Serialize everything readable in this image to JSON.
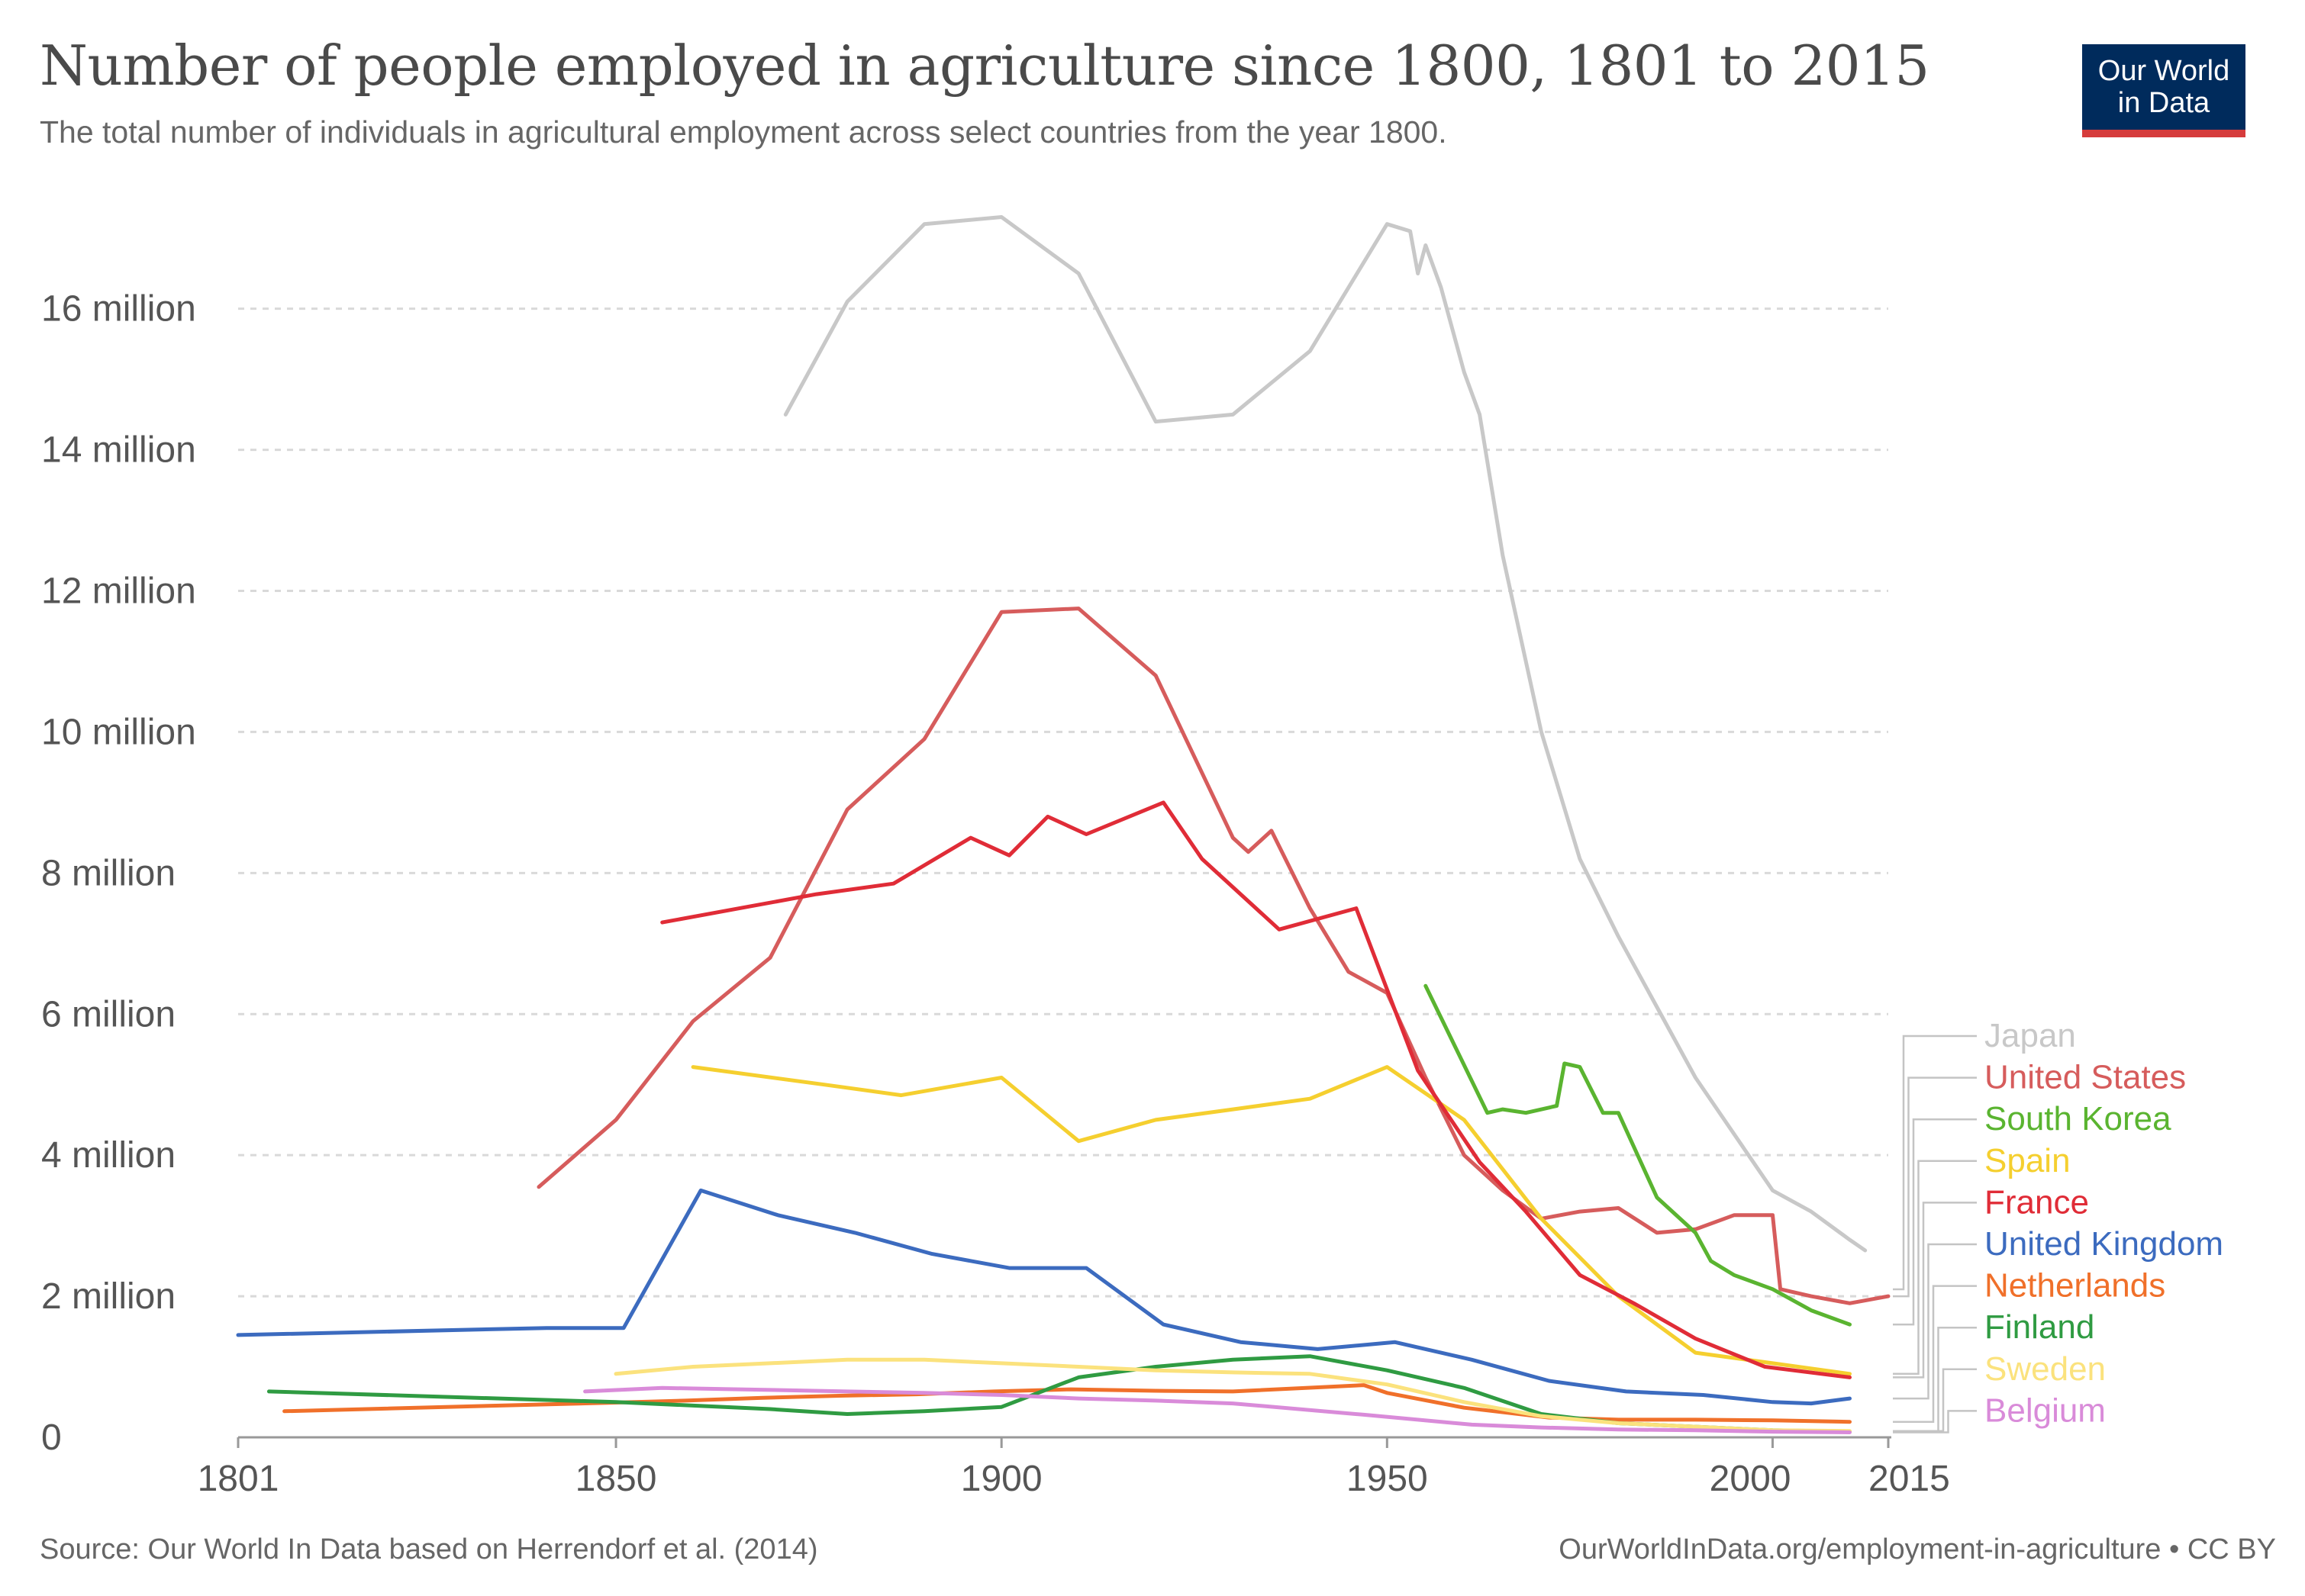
{
  "header": {
    "title": "Number of people employed in agriculture since 1800, 1801 to 2015",
    "subtitle": "The total number of individuals in agricultural employment across select countries from the year 1800.",
    "logo_line1": "Our World",
    "logo_line2": "in Data"
  },
  "footer": {
    "source": "Source: Our World In Data based on Herrendorf et al. (2014)",
    "url": "OurWorldInData.org/employment-in-agriculture • CC BY"
  },
  "chart_data": {
    "type": "line",
    "title": "Number of people employed in agriculture since 1800, 1801 to 2015",
    "xlabel": "",
    "ylabel": "",
    "xlim": [
      1801,
      2015
    ],
    "ylim": [
      0,
      17500000
    ],
    "x_ticks": [
      1801,
      1850,
      1900,
      1950,
      2000,
      2015
    ],
    "y_ticks": [
      {
        "value": 0,
        "label": "0"
      },
      {
        "value": 2000000,
        "label": "2 million"
      },
      {
        "value": 4000000,
        "label": "4 million"
      },
      {
        "value": 6000000,
        "label": "6 million"
      },
      {
        "value": 8000000,
        "label": "8 million"
      },
      {
        "value": 10000000,
        "label": "10 million"
      },
      {
        "value": 12000000,
        "label": "12 million"
      },
      {
        "value": 14000000,
        "label": "14 million"
      },
      {
        "value": 16000000,
        "label": "16 million"
      }
    ],
    "grid": true,
    "legend_position": "right",
    "series": [
      {
        "name": "Japan",
        "color": "#c8c8c8",
        "x": [
          1872,
          1880,
          1890,
          1900,
          1910,
          1920,
          1930,
          1940,
          1950,
          1953,
          1954,
          1955,
          1957,
          1960,
          1962,
          1965,
          1970,
          1975,
          1980,
          1985,
          1990,
          1995,
          2000,
          2005,
          2010,
          2012
        ],
        "y": [
          14500000,
          16100000,
          17200000,
          17300000,
          16500000,
          14400000,
          14500000,
          15400000,
          17200000,
          17100000,
          16500000,
          16900000,
          16300000,
          15100000,
          14500000,
          12500000,
          10000000,
          8200000,
          7100000,
          6100000,
          5100000,
          4300000,
          3500000,
          3200000,
          2800000,
          2650000
        ]
      },
      {
        "name": "United States",
        "color": "#d65c5c",
        "x": [
          1840,
          1850,
          1860,
          1870,
          1880,
          1890,
          1900,
          1910,
          1920,
          1930,
          1932,
          1935,
          1940,
          1945,
          1950,
          1955,
          1960,
          1965,
          1970,
          1975,
          1980,
          1985,
          1990,
          1995,
          2000,
          2001,
          2005,
          2010,
          2015
        ],
        "y": [
          3550000,
          4500000,
          5900000,
          6800000,
          8900000,
          9900000,
          11700000,
          11750000,
          10800000,
          8500000,
          8300000,
          8600000,
          7500000,
          6600000,
          6300000,
          5100000,
          4000000,
          3500000,
          3100000,
          3200000,
          3250000,
          2900000,
          2950000,
          3150000,
          3150000,
          2100000,
          2000000,
          1900000,
          2000000
        ]
      },
      {
        "name": "South Korea",
        "color": "#5ab430",
        "x": [
          1955,
          1963,
          1965,
          1968,
          1972,
          1973,
          1975,
          1978,
          1980,
          1985,
          1990,
          1992,
          1995,
          2000,
          2005,
          2010
        ],
        "y": [
          6400000,
          4600000,
          4650000,
          4600000,
          4700000,
          5300000,
          5250000,
          4600000,
          4600000,
          3400000,
          2900000,
          2500000,
          2300000,
          2100000,
          1800000,
          1600000
        ]
      },
      {
        "name": "Spain",
        "color": "#f5cf2f",
        "x": [
          1860,
          1877,
          1887,
          1900,
          1910,
          1920,
          1930,
          1940,
          1950,
          1960,
          1970,
          1980,
          1990,
          2000,
          2010
        ],
        "y": [
          5250000,
          5000000,
          4850000,
          5100000,
          4200000,
          4500000,
          4650000,
          4800000,
          5250000,
          4500000,
          3100000,
          2000000,
          1200000,
          1050000,
          900000
        ]
      },
      {
        "name": "France",
        "color": "#e02c37",
        "x": [
          1856,
          1866,
          1876,
          1886,
          1896,
          1901,
          1906,
          1911,
          1921,
          1926,
          1936,
          1946,
          1954,
          1962,
          1968,
          1975,
          1982,
          1990,
          1999,
          2010
        ],
        "y": [
          7300000,
          7500000,
          7700000,
          7850000,
          8500000,
          8250000,
          8800000,
          8550000,
          9000000,
          8200000,
          7200000,
          7500000,
          5200000,
          3900000,
          3200000,
          2300000,
          1900000,
          1400000,
          1000000,
          850000
        ]
      },
      {
        "name": "United Kingdom",
        "color": "#3c6bbf",
        "x": [
          1801,
          1841,
          1851,
          1861,
          1871,
          1881,
          1891,
          1901,
          1911,
          1921,
          1931,
          1941,
          1951,
          1961,
          1971,
          1981,
          1991,
          2000,
          2005,
          2010
        ],
        "y": [
          1450000,
          1550000,
          1550000,
          3500000,
          3150000,
          2900000,
          2600000,
          2400000,
          2400000,
          1600000,
          1350000,
          1250000,
          1350000,
          1100000,
          800000,
          650000,
          600000,
          500000,
          480000,
          550000
        ]
      },
      {
        "name": "Netherlands",
        "color": "#f0702a",
        "x": [
          1807,
          1849,
          1859,
          1869,
          1879,
          1889,
          1899,
          1909,
          1920,
          1930,
          1947,
          1950,
          1960,
          1971,
          1980,
          1990,
          2000,
          2010
        ],
        "y": [
          370000,
          490000,
          520000,
          560000,
          590000,
          610000,
          650000,
          680000,
          660000,
          650000,
          740000,
          630000,
          420000,
          280000,
          250000,
          250000,
          240000,
          220000
        ]
      },
      {
        "name": "Finland",
        "color": "#2f9b42",
        "x": [
          1805,
          1850,
          1860,
          1870,
          1880,
          1890,
          1900,
          1910,
          1920,
          1930,
          1940,
          1950,
          1960,
          1970,
          1980,
          1990,
          2000,
          2010
        ],
        "y": [
          650000,
          500000,
          450000,
          400000,
          330000,
          370000,
          430000,
          850000,
          1000000,
          1100000,
          1150000,
          950000,
          700000,
          330000,
          200000,
          150000,
          100000,
          80000
        ]
      },
      {
        "name": "Sweden",
        "color": "#fbe27d",
        "x": [
          1850,
          1860,
          1870,
          1880,
          1890,
          1900,
          1910,
          1920,
          1930,
          1940,
          1950,
          1960,
          1970,
          1980,
          1990,
          2000,
          2010
        ],
        "y": [
          900000,
          1000000,
          1050000,
          1100000,
          1100000,
          1050000,
          1000000,
          950000,
          920000,
          900000,
          750000,
          500000,
          300000,
          200000,
          150000,
          100000,
          90000
        ]
      },
      {
        "name": "Belgium",
        "color": "#d98bd9",
        "x": [
          1846,
          1856,
          1866,
          1880,
          1890,
          1900,
          1910,
          1920,
          1930,
          1947,
          1961,
          1970,
          1980,
          1990,
          2000,
          2010
        ],
        "y": [
          650000,
          700000,
          680000,
          650000,
          630000,
          600000,
          550000,
          520000,
          480000,
          320000,
          180000,
          140000,
          110000,
          100000,
          80000,
          70000
        ]
      }
    ]
  }
}
